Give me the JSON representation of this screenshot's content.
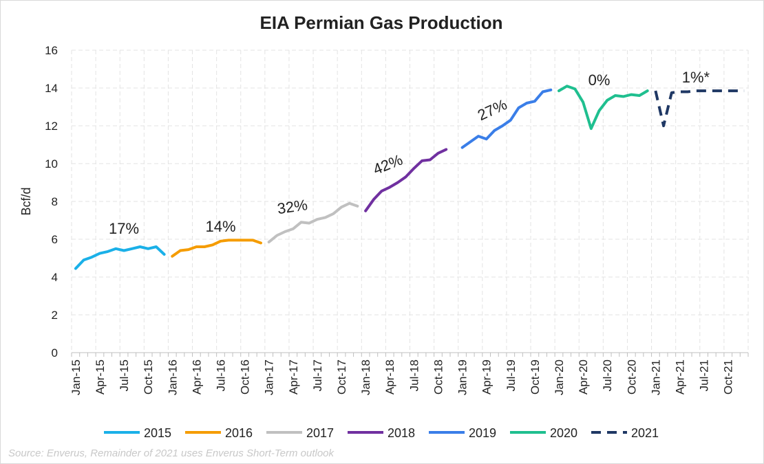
{
  "chart_data": {
    "type": "line",
    "title": "EIA Permian Gas Production",
    "ylabel": "Bcf/d",
    "xlabel": "",
    "ylim": [
      0,
      16
    ],
    "yticks": [
      0,
      2,
      4,
      6,
      8,
      10,
      12,
      14,
      16
    ],
    "grid": true,
    "legend_position": "bottom",
    "x_tick_labels": [
      "Jan-15",
      "Apr-15",
      "Jul-15",
      "Oct-15",
      "Jan-16",
      "Apr-16",
      "Jul-16",
      "Oct-16",
      "Jan-17",
      "Apr-17",
      "Jul-17",
      "Oct-17",
      "Jan-18",
      "Apr-18",
      "Jul-18",
      "Oct-18",
      "Jan-19",
      "Apr-19",
      "Jul-19",
      "Oct-19",
      "Jan-20",
      "Apr-20",
      "Jul-20",
      "Oct-20",
      "Jan-21",
      "Apr-21",
      "Jul-21",
      "Oct-21"
    ],
    "series": [
      {
        "name": "2015",
        "color": "#1ab0e8",
        "dashed": false,
        "x": [
          "Jan-15",
          "Feb-15",
          "Mar-15",
          "Apr-15",
          "May-15",
          "Jun-15",
          "Jul-15",
          "Aug-15",
          "Sep-15",
          "Oct-15",
          "Nov-15",
          "Dec-15"
        ],
        "values": [
          4.45,
          4.9,
          5.05,
          5.25,
          5.35,
          5.5,
          5.4,
          5.5,
          5.6,
          5.5,
          5.6,
          5.2
        ]
      },
      {
        "name": "2016",
        "color": "#f59c00",
        "dashed": false,
        "x": [
          "Jan-16",
          "Feb-16",
          "Mar-16",
          "Apr-16",
          "May-16",
          "Jun-16",
          "Jul-16",
          "Aug-16",
          "Sep-16",
          "Oct-16",
          "Nov-16",
          "Dec-16"
        ],
        "values": [
          5.1,
          5.4,
          5.45,
          5.6,
          5.6,
          5.7,
          5.9,
          5.95,
          5.95,
          5.95,
          5.95,
          5.8
        ]
      },
      {
        "name": "2017",
        "color": "#c0c0c0",
        "dashed": false,
        "x": [
          "Jan-17",
          "Feb-17",
          "Mar-17",
          "Apr-17",
          "May-17",
          "Jun-17",
          "Jul-17",
          "Aug-17",
          "Sep-17",
          "Oct-17",
          "Nov-17",
          "Dec-17"
        ],
        "values": [
          5.85,
          6.2,
          6.4,
          6.55,
          6.9,
          6.85,
          7.05,
          7.15,
          7.35,
          7.7,
          7.9,
          7.75
        ]
      },
      {
        "name": "2018",
        "color": "#7030a0",
        "dashed": false,
        "x": [
          "Jan-18",
          "Feb-18",
          "Mar-18",
          "Apr-18",
          "May-18",
          "Jun-18",
          "Jul-18",
          "Aug-18",
          "Sep-18",
          "Oct-18",
          "Nov-18",
          "Dec-18"
        ],
        "values": [
          7.5,
          8.1,
          8.55,
          8.75,
          9.0,
          9.3,
          9.75,
          10.15,
          10.2,
          10.55,
          10.75,
          null
        ]
      },
      {
        "name": "2019",
        "color": "#3a7ee8",
        "dashed": false,
        "x": [
          "Jan-19",
          "Feb-19",
          "Mar-19",
          "Apr-19",
          "May-19",
          "Jun-19",
          "Jul-19",
          "Aug-19",
          "Sep-19",
          "Oct-19",
          "Nov-19",
          "Dec-19"
        ],
        "values": [
          10.85,
          11.15,
          11.45,
          11.3,
          11.75,
          12.0,
          12.3,
          12.95,
          13.2,
          13.3,
          13.8,
          13.9
        ]
      },
      {
        "name": "2020",
        "color": "#1fbf8f",
        "dashed": false,
        "x": [
          "Jan-20",
          "Feb-20",
          "Mar-20",
          "Apr-20",
          "May-20",
          "Jun-20",
          "Jul-20",
          "Aug-20",
          "Sep-20",
          "Oct-20",
          "Nov-20",
          "Dec-20"
        ],
        "values": [
          13.85,
          14.1,
          13.95,
          13.25,
          11.85,
          12.8,
          13.35,
          13.6,
          13.55,
          13.65,
          13.6,
          13.85
        ]
      },
      {
        "name": "2021",
        "color": "#1f3864",
        "dashed": true,
        "x": [
          "Jan-21",
          "Feb-21",
          "Mar-21",
          "Apr-21",
          "May-21",
          "Jun-21",
          "Jul-21",
          "Aug-21",
          "Sep-21",
          "Oct-21",
          "Nov-21",
          "Dec-21"
        ],
        "values": [
          13.85,
          12.0,
          13.75,
          13.8,
          13.8,
          13.85,
          13.85,
          13.85,
          13.85,
          13.85,
          13.85,
          13.85
        ]
      }
    ],
    "annotations": [
      {
        "text": "17%",
        "x": "Jul-15",
        "y": 6.3,
        "rotate": 0
      },
      {
        "text": "14%",
        "x": "Jul-16",
        "y": 6.4,
        "rotate": 0
      },
      {
        "text": "32%",
        "x": "Apr-17",
        "y": 7.45,
        "rotate": -8
      },
      {
        "text": "42%",
        "x": "Apr-18",
        "y": 9.7,
        "rotate": -22
      },
      {
        "text": "27%",
        "x": "May-19",
        "y": 12.6,
        "rotate": -25
      },
      {
        "text": "0%",
        "x": "Jun-20",
        "y": 14.15,
        "rotate": 0
      },
      {
        "text": "1%*",
        "x": "Jun-21",
        "y": 14.3,
        "rotate": 0
      }
    ],
    "source": "Source: Enverus, Remainder of 2021 uses Enverus Short-Term outlook"
  }
}
